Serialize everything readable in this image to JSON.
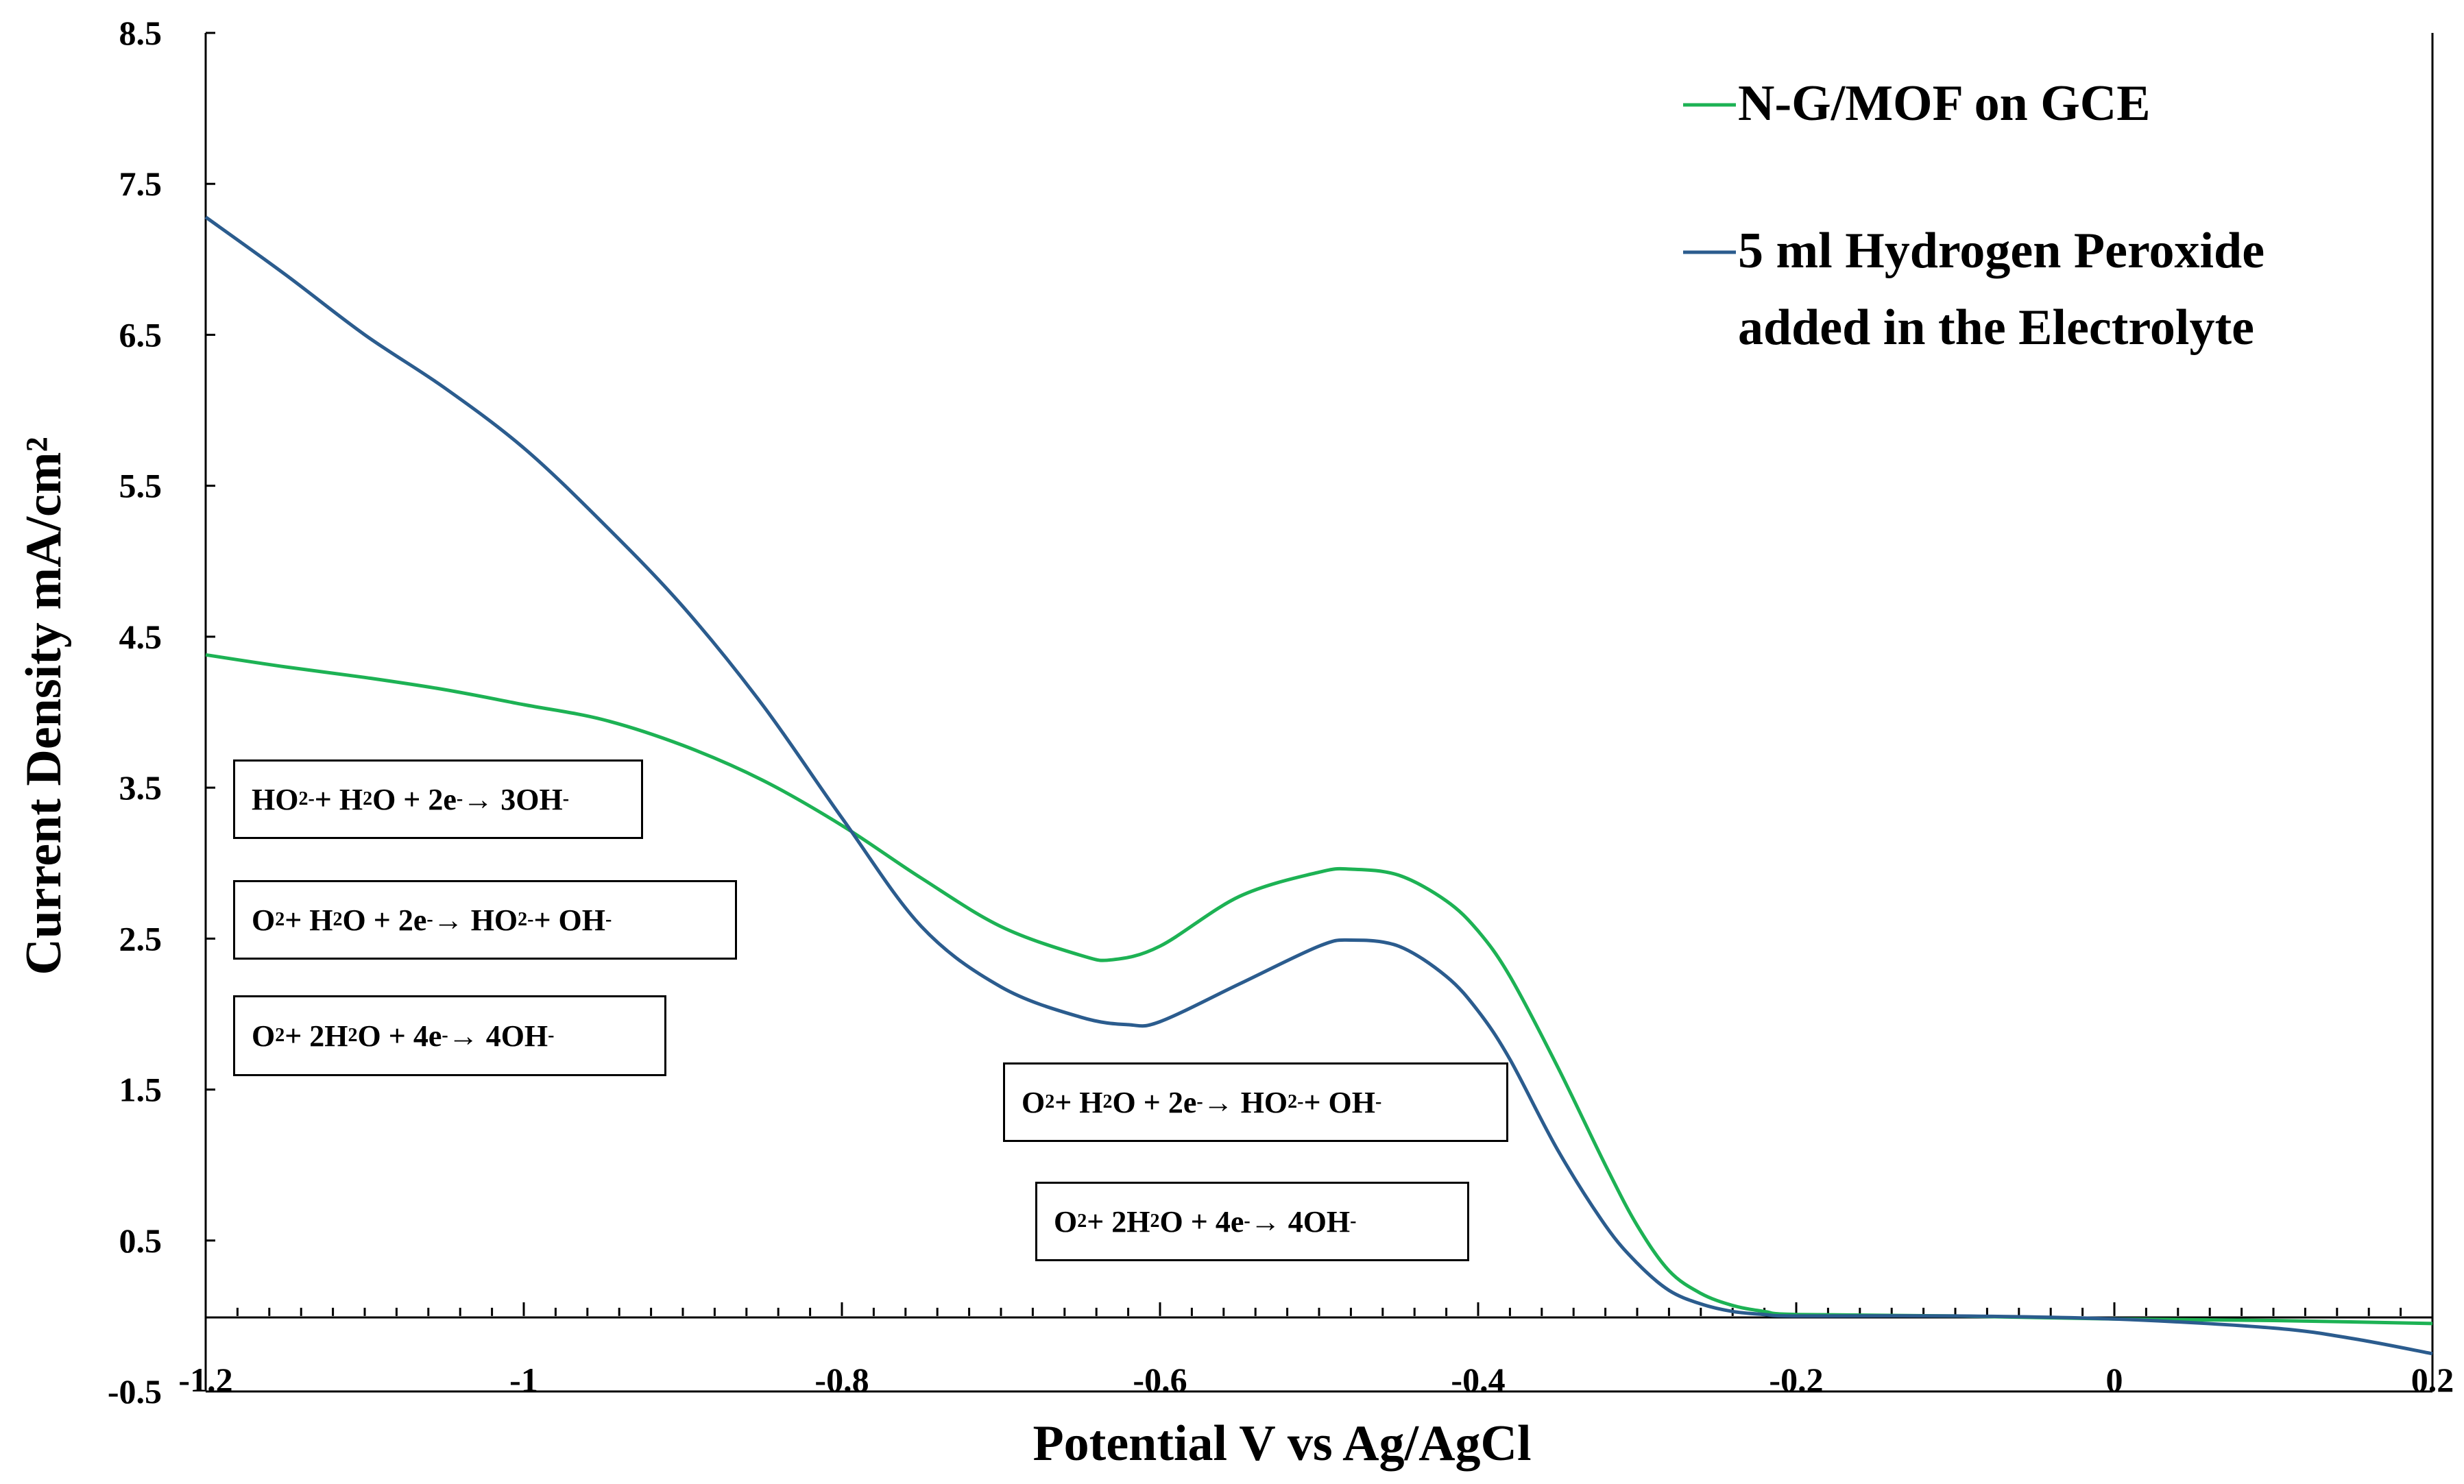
{
  "chart_data": {
    "type": "line",
    "title": "",
    "xlabel": "Potential V vs Ag/AgCl",
    "ylabel": "Current Density mA/cm²",
    "xlim": [
      -1.2,
      0.2
    ],
    "ylim": [
      -0.5,
      8.5
    ],
    "x_ticks": [
      -1.2,
      -1.0,
      -0.8,
      -0.6,
      -0.4,
      -0.2,
      0.0,
      0.2
    ],
    "x_tick_labels": [
      "-1.2",
      "-1",
      "-0.8",
      "-0.6",
      "-0.4",
      "-0.2",
      "0",
      "0.2"
    ],
    "y_ticks": [
      -0.5,
      0.5,
      1.5,
      2.5,
      3.5,
      4.5,
      5.5,
      6.5,
      7.5,
      8.5
    ],
    "y_tick_labels": [
      "-0.5",
      "0.5",
      "1.5",
      "2.5",
      "3.5",
      "4.5",
      "5.5",
      "6.5",
      "7.5",
      "8.5"
    ],
    "grid": false,
    "legend_position": "top-right",
    "series": [
      {
        "name": "N-G/MOF on GCE",
        "color": "#1db254",
        "x": [
          -1.2,
          -1.15,
          -1.1,
          -1.05,
          -1.0,
          -0.95,
          -0.9,
          -0.85,
          -0.8,
          -0.75,
          -0.7,
          -0.65,
          -0.63,
          -0.6,
          -0.55,
          -0.5,
          -0.48,
          -0.45,
          -0.42,
          -0.4,
          -0.38,
          -0.35,
          -0.32,
          -0.3,
          -0.28,
          -0.26,
          -0.24,
          -0.22,
          -0.2,
          -0.1,
          0.0,
          0.1,
          0.2
        ],
        "y": [
          4.38,
          4.3,
          4.23,
          4.15,
          4.05,
          3.95,
          3.78,
          3.55,
          3.25,
          2.9,
          2.58,
          2.39,
          2.36,
          2.45,
          2.78,
          2.94,
          2.96,
          2.92,
          2.75,
          2.55,
          2.25,
          1.65,
          1.0,
          0.6,
          0.3,
          0.15,
          0.07,
          0.03,
          0.01,
          0.0,
          -0.02,
          -0.03,
          -0.05
        ]
      },
      {
        "name": "5 ml Hydrogen Peroxide added in the Electrolyte",
        "color": "#2b5c8e",
        "x": [
          -1.2,
          -1.15,
          -1.1,
          -1.05,
          -1.0,
          -0.95,
          -0.9,
          -0.85,
          -0.8,
          -0.75,
          -0.7,
          -0.65,
          -0.62,
          -0.6,
          -0.55,
          -0.5,
          -0.48,
          -0.45,
          -0.42,
          -0.4,
          -0.38,
          -0.35,
          -0.32,
          -0.3,
          -0.28,
          -0.26,
          -0.24,
          -0.22,
          -0.2,
          -0.1,
          0.0,
          0.1,
          0.15,
          0.2
        ],
        "y": [
          7.28,
          6.9,
          6.5,
          6.15,
          5.75,
          5.25,
          4.7,
          4.05,
          3.3,
          2.58,
          2.18,
          1.98,
          1.93,
          1.95,
          2.2,
          2.45,
          2.49,
          2.45,
          2.25,
          2.02,
          1.7,
          1.1,
          0.6,
          0.35,
          0.17,
          0.08,
          0.03,
          0.01,
          0.0,
          0.0,
          -0.02,
          -0.08,
          -0.15,
          -0.25
        ]
      }
    ],
    "annotations": [
      {
        "id": "eq1",
        "pre": "HO",
        "sub1": "2",
        "sup1": "-",
        "mid1": " + H",
        "sub2": "2",
        "mid2": "O + 2e",
        "sup2": "-",
        "post": " →  3OH",
        "sup3": "-"
      },
      {
        "id": "eq2",
        "pre": "O",
        "sub1": "2",
        "mid1": " + H",
        "sub2": "2",
        "mid2": "O + 2e",
        "sup2": "-",
        "mid3": " → HO",
        "sub3": "2",
        "sup3": "-",
        "post": " + OH",
        "sup4": "-"
      },
      {
        "id": "eq3",
        "pre": "O",
        "sub1": "2",
        "mid1": " + 2H",
        "sub2": "2",
        "mid2": "O + 4e",
        "sup2": "-",
        "post": " →  4OH",
        "sup3": "-"
      },
      {
        "id": "eq4",
        "pre": "O",
        "sub1": "2",
        "mid1": " + H",
        "sub2": "2",
        "mid2": "O + 2e",
        "sup2": "-",
        "mid3": " → HO",
        "sub3": "2",
        "sup3": "-",
        "post": " + OH",
        "sup4": "-"
      },
      {
        "id": "eq5",
        "pre": "O",
        "sub1": "2",
        "mid1": " + 2H",
        "sub2": "2",
        "mid2": "O + 4e",
        "sup2": "-",
        "post": " →  4OH",
        "sup3": "-"
      }
    ]
  },
  "legend": {
    "series1_label": "N-G/MOF on GCE",
    "series2_label_line1": "5 ml Hydrogen Peroxide",
    "series2_label_line2": "added in the Electrolyte"
  }
}
